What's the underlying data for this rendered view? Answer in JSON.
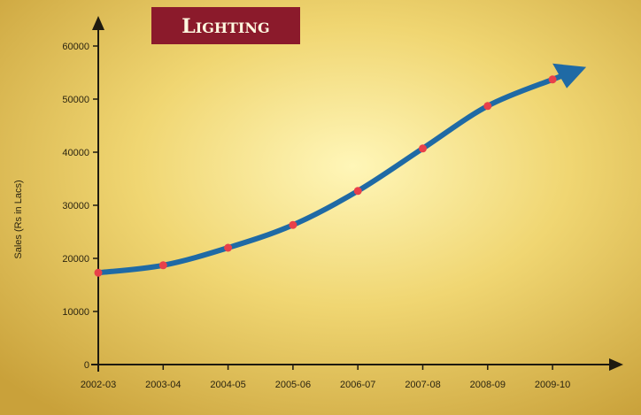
{
  "chart_data": {
    "type": "line",
    "title": "Lighting",
    "ylabel": "Sales (Rs in Lacs)",
    "xlabel": "",
    "categories": [
      "2002-03",
      "2003-04",
      "2004-05",
      "2005-06",
      "2006-07",
      "2007-08",
      "2008-09",
      "2009-10"
    ],
    "series": [
      {
        "values": [
          17300,
          18700,
          22000,
          26300,
          32700,
          40700,
          48700,
          53700
        ]
      }
    ],
    "yticks": [
      "0",
      "10000",
      "20000",
      "30000",
      "40000",
      "50000",
      "60000"
    ],
    "ylim": [
      0,
      60000
    ],
    "grid": false,
    "line_color": "#1f6aa5",
    "marker_color": "#e8404a",
    "title_bg_color": "#8b1a2b",
    "axis_color": "#1e1a10"
  }
}
